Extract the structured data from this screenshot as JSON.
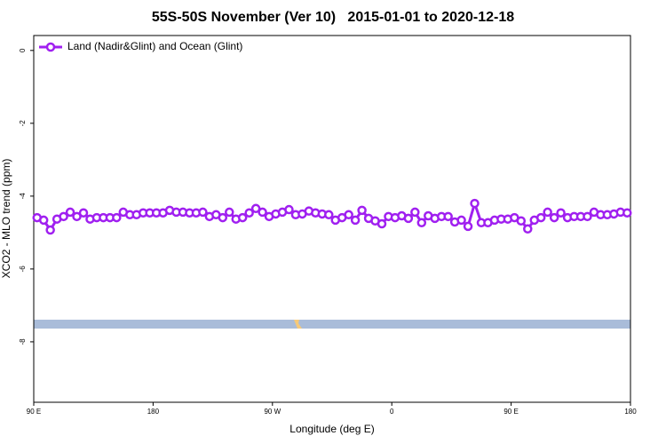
{
  "chart_data": {
    "type": "line",
    "title": "55S-50S November (Ver 10)   2015-01-01 to 2020-12-18",
    "x_label": "Longitude (deg E)",
    "y_label": "XCO2 - MLO trend (ppm)",
    "xlim": [
      90,
      540
    ],
    "ylim": [
      -9.66,
      0.41
    ],
    "xticks": [
      {
        "value": 90,
        "label": "90 E"
      },
      {
        "value": 180,
        "label": "180"
      },
      {
        "value": 270,
        "label": "90 W"
      },
      {
        "value": 360,
        "label": "0"
      },
      {
        "value": 450,
        "label": "90 E"
      },
      {
        "value": 540,
        "label": "180"
      }
    ],
    "yticks": [
      0,
      -2,
      -4,
      -6,
      -8
    ],
    "legend": "top-left",
    "x": [
      92.5,
      97.5,
      102.5,
      107.5,
      112.5,
      117.5,
      122.5,
      127.5,
      132.5,
      137.5,
      142.5,
      147.5,
      152.5,
      157.5,
      162.5,
      167.5,
      172.5,
      177.5,
      182.5,
      187.5,
      192.5,
      197.5,
      202.5,
      207.5,
      212.5,
      217.5,
      222.5,
      227.5,
      232.5,
      237.5,
      242.5,
      247.5,
      252.5,
      257.5,
      262.5,
      267.5,
      272.5,
      277.5,
      282.5,
      287.5,
      292.5,
      297.5,
      302.5,
      307.5,
      312.5,
      317.5,
      322.5,
      327.5,
      332.5,
      337.5,
      342.5,
      347.5,
      352.5,
      357.5,
      362.5,
      367.5,
      372.5,
      377.5,
      382.5,
      387.5,
      392.5,
      397.5,
      402.5,
      407.5,
      412.5,
      417.5,
      422.5,
      427.5,
      432.5,
      437.5,
      442.5,
      447.5,
      452.5,
      457.5,
      462.5,
      467.5,
      472.5,
      477.5,
      482.5,
      487.5,
      492.5,
      497.5,
      502.5,
      507.5,
      512.5,
      517.5,
      522.5,
      527.5,
      532.5,
      537.5
    ],
    "series": [
      {
        "name": "Land (Nadir&Glint) and Ocean (Glint)",
        "color": "#a020f0",
        "values": [
          -4.59,
          -4.66,
          -4.93,
          -4.63,
          -4.56,
          -4.44,
          -4.56,
          -4.46,
          -4.63,
          -4.59,
          -4.59,
          -4.59,
          -4.59,
          -4.44,
          -4.51,
          -4.51,
          -4.46,
          -4.46,
          -4.46,
          -4.46,
          -4.39,
          -4.44,
          -4.44,
          -4.46,
          -4.46,
          -4.44,
          -4.56,
          -4.51,
          -4.59,
          -4.44,
          -4.63,
          -4.59,
          -4.46,
          -4.34,
          -4.44,
          -4.56,
          -4.49,
          -4.44,
          -4.37,
          -4.51,
          -4.49,
          -4.41,
          -4.46,
          -4.49,
          -4.51,
          -4.66,
          -4.59,
          -4.51,
          -4.66,
          -4.39,
          -4.61,
          -4.68,
          -4.76,
          -4.56,
          -4.59,
          -4.54,
          -4.61,
          -4.44,
          -4.73,
          -4.54,
          -4.61,
          -4.56,
          -4.56,
          -4.71,
          -4.66,
          -4.83,
          -4.2,
          -4.73,
          -4.73,
          -4.66,
          -4.63,
          -4.63,
          -4.59,
          -4.68,
          -4.9,
          -4.66,
          -4.59,
          -4.44,
          -4.59,
          -4.46,
          -4.59,
          -4.56,
          -4.56,
          -4.56,
          -4.44,
          -4.51,
          -4.51,
          -4.49,
          -4.44,
          -4.46
        ]
      }
    ]
  }
}
